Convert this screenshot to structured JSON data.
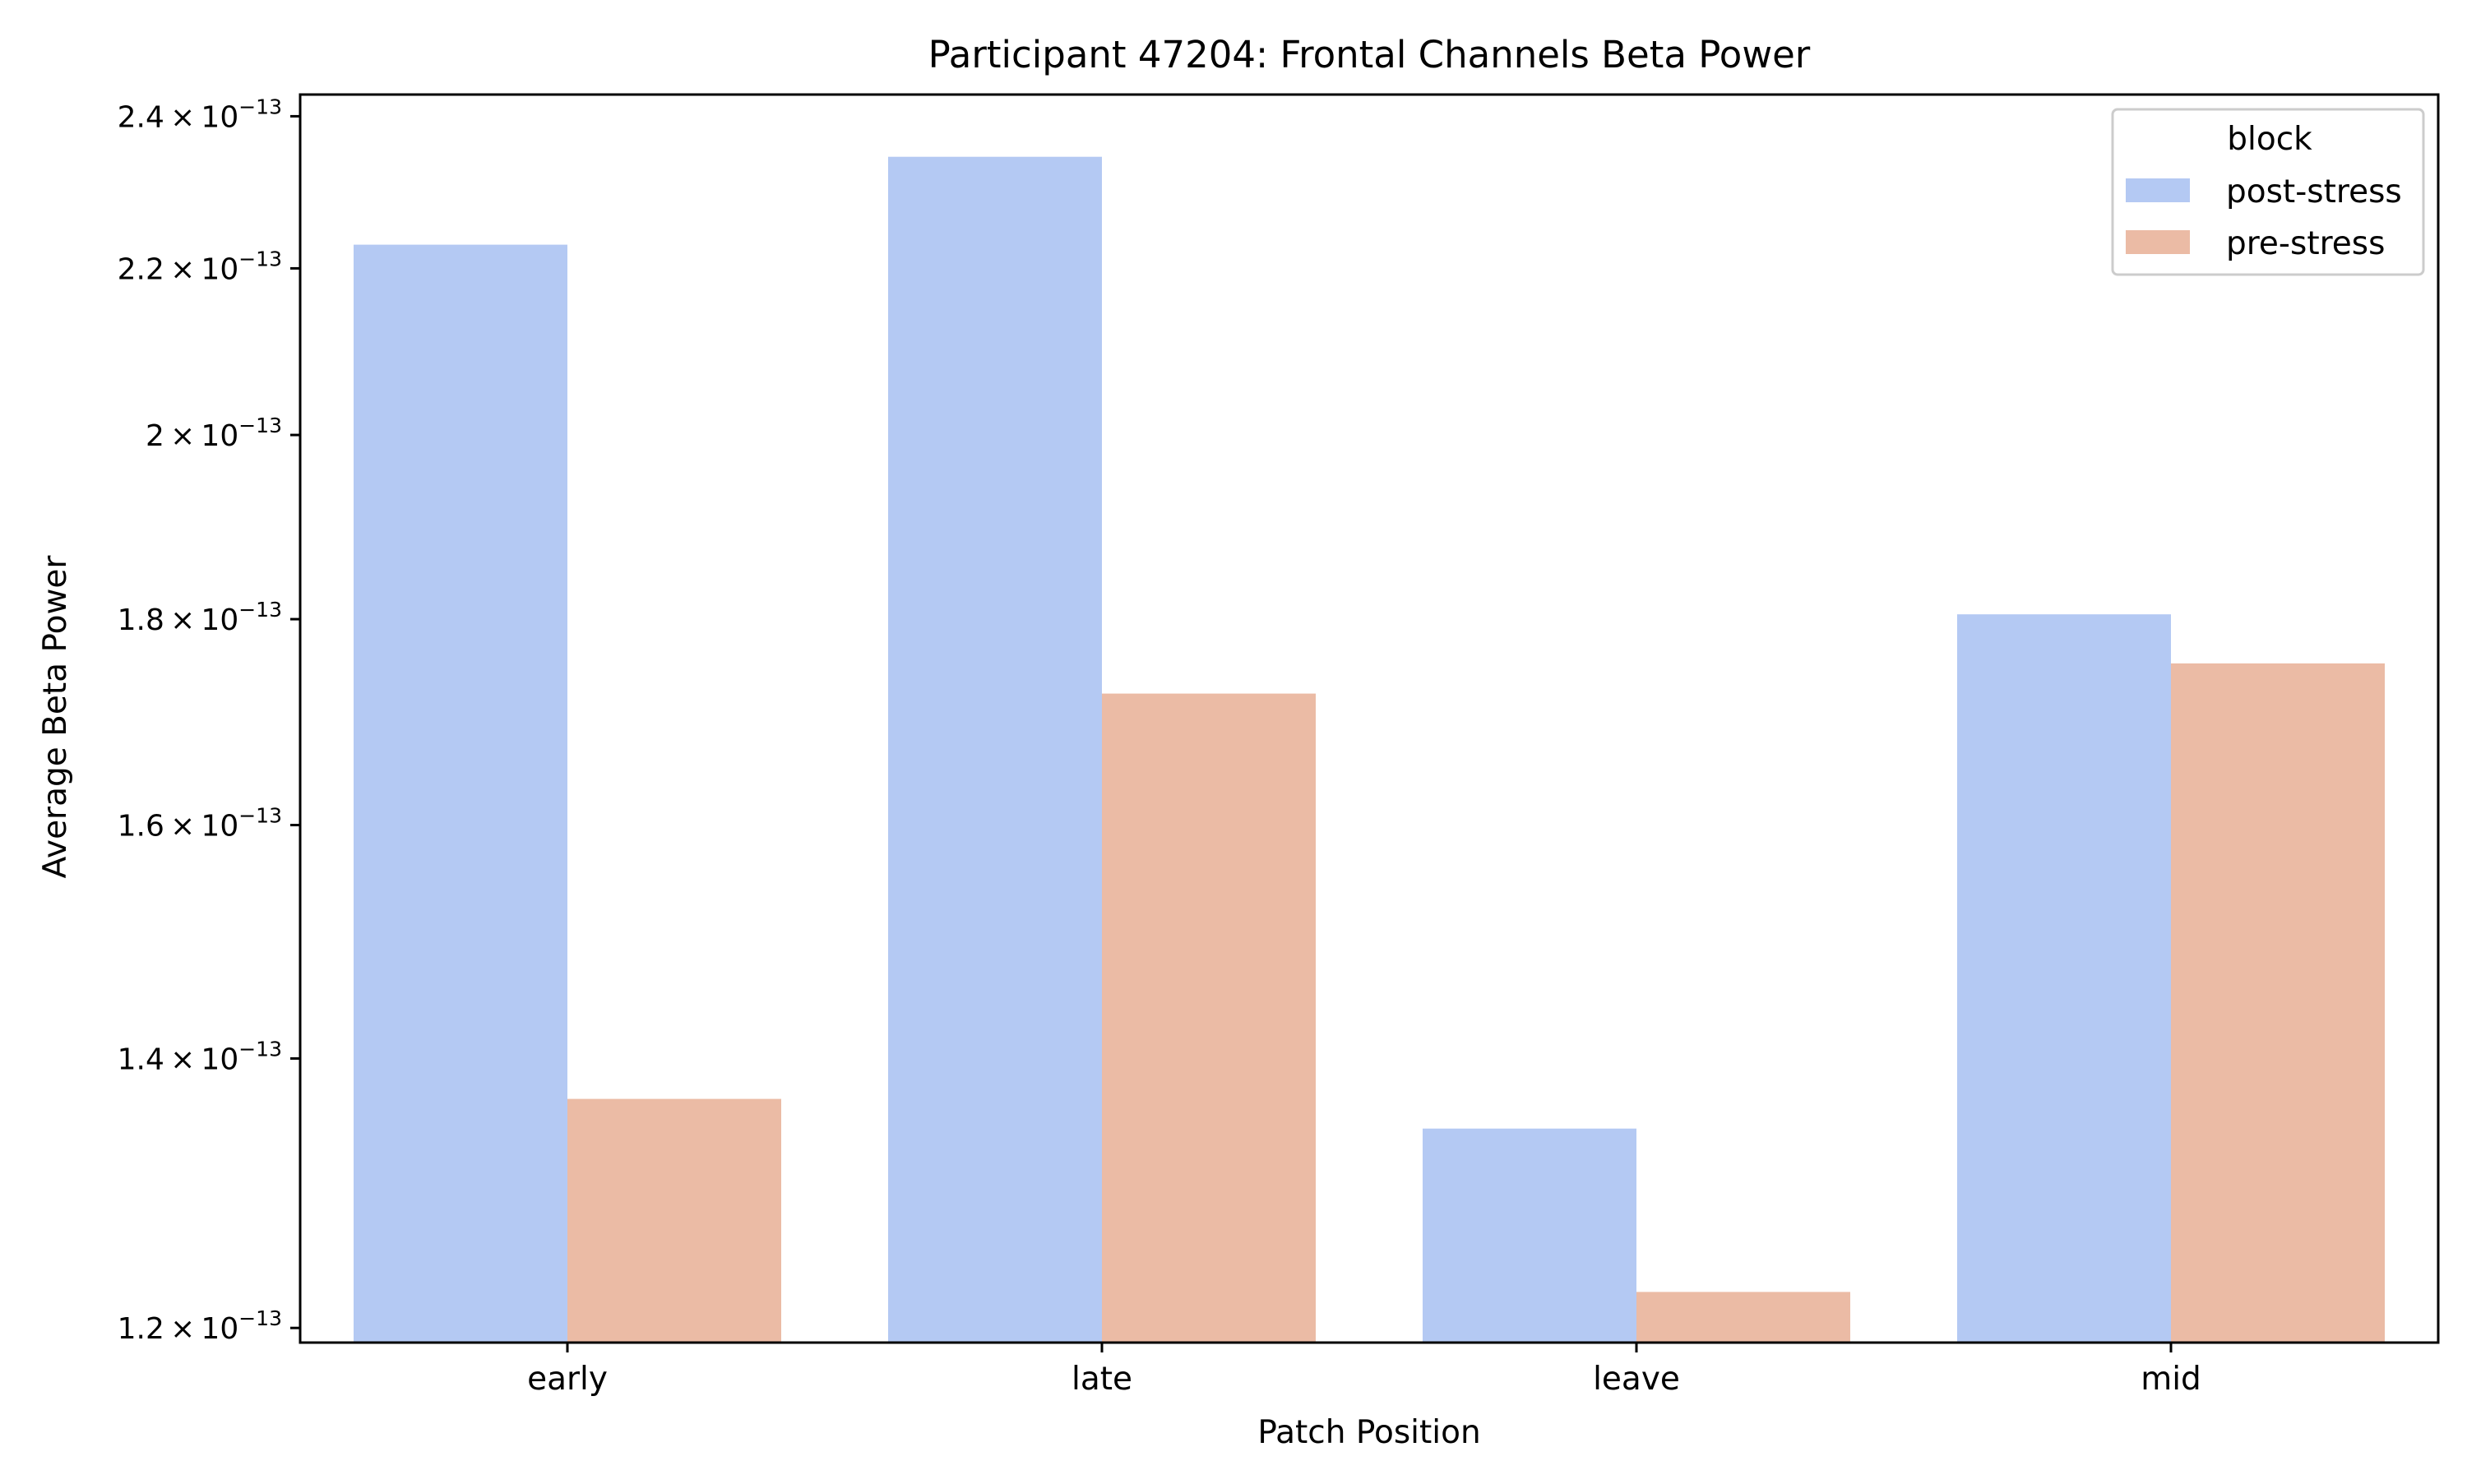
{
  "chart_data": {
    "type": "bar",
    "title": "Participant 47204: Frontal Channels Beta Power",
    "xlabel": "Patch Position",
    "ylabel": "Average Beta Power",
    "categories": [
      "early",
      "late",
      "leave",
      "mid"
    ],
    "series": [
      {
        "name": "post-stress",
        "color": "#b4c9f3",
        "values": [
          2.23e-13,
          2.345e-13,
          1.345e-13,
          1.805e-13
        ]
      },
      {
        "name": "pre-stress",
        "color": "#ebbba5",
        "values": [
          1.368e-13,
          1.725e-13,
          1.225e-13,
          1.755e-13
        ]
      }
    ],
    "y_scale": "log",
    "ylim": [
      1.19e-13,
      2.43e-13
    ],
    "y_ticks": [
      {
        "value": 1.2e-13,
        "mantissa": "1.2",
        "exponent": "−13"
      },
      {
        "value": 1.4e-13,
        "mantissa": "1.4",
        "exponent": "−13"
      },
      {
        "value": 1.6e-13,
        "mantissa": "1.6",
        "exponent": "−13"
      },
      {
        "value": 1.8e-13,
        "mantissa": "1.8",
        "exponent": "−13"
      },
      {
        "value": 2e-13,
        "mantissa": "2",
        "exponent": "−13"
      },
      {
        "value": 2.2e-13,
        "mantissa": "2.2",
        "exponent": "−13"
      },
      {
        "value": 2.4e-13,
        "mantissa": "2.4",
        "exponent": "−13"
      }
    ],
    "grid": false,
    "legend": {
      "title": "block",
      "placement": "top-right"
    }
  }
}
